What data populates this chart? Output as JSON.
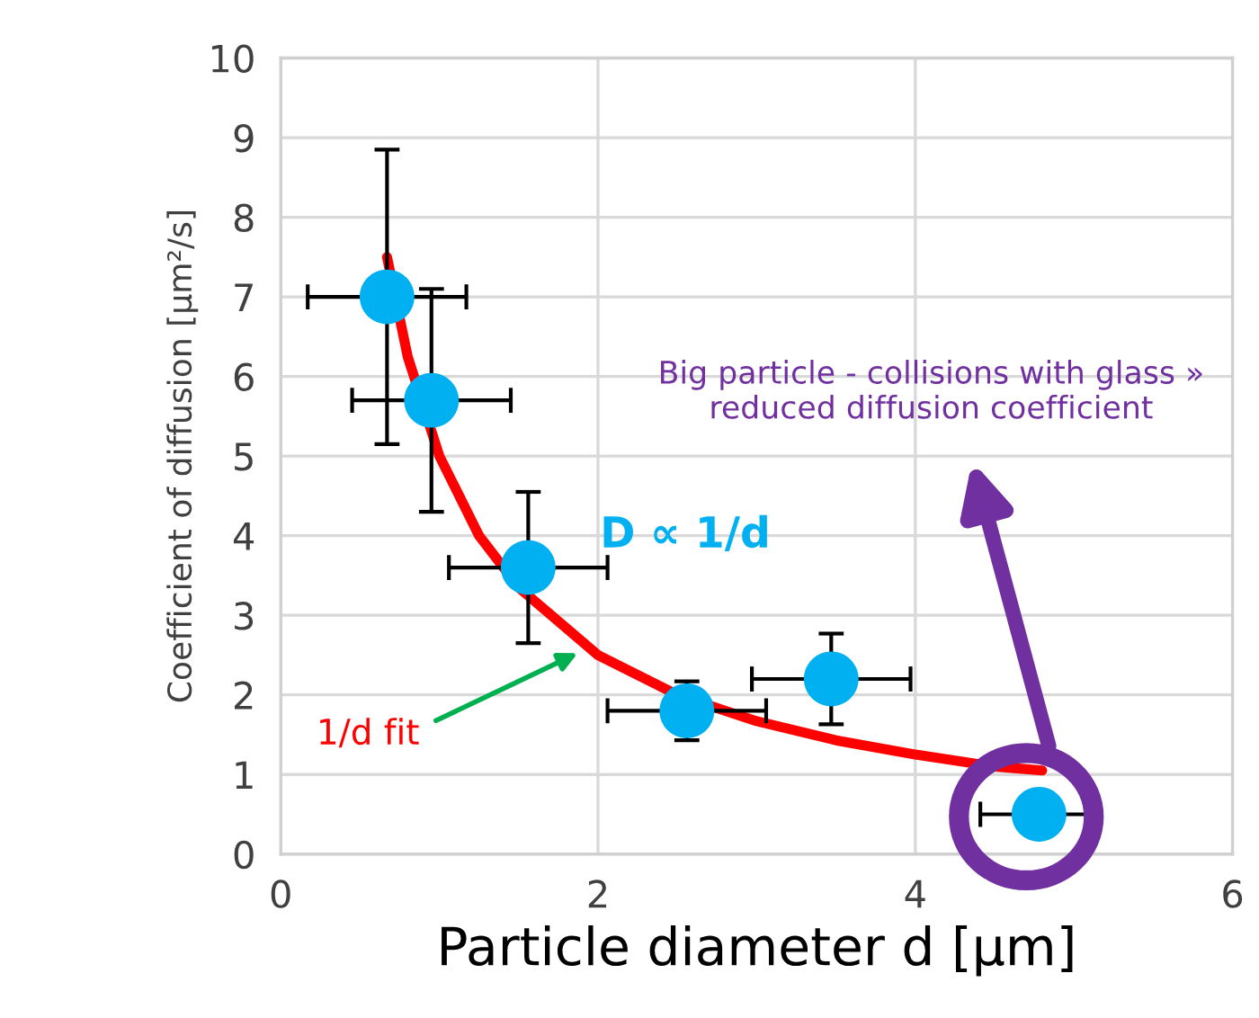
{
  "chart_data": {
    "type": "scatter",
    "xlabel": "Particle diameter d [µm]",
    "ylabel": "Coefficient of diffusion [µm²/s]",
    "xlim": [
      0,
      6
    ],
    "xticks": [
      0,
      2,
      4,
      6
    ],
    "ylim": [
      0,
      10
    ],
    "yticks": [
      0,
      1,
      2,
      3,
      4,
      5,
      6,
      7,
      8,
      9,
      10
    ],
    "grid": true,
    "marker": "circle",
    "series": [
      {
        "color": "#00b0f0",
        "x": [
          0.67,
          0.95,
          1.56,
          2.56,
          3.47,
          4.78
        ],
        "values": [
          7.0,
          5.7,
          3.6,
          1.8,
          2.2,
          0.5
        ],
        "errors": [
          1.85,
          1.4,
          0.95,
          0.37,
          0.57,
          null
        ],
        "xerrors": [
          0.5,
          0.5,
          0.5,
          0.5,
          0.5,
          0.37
        ]
      },
      {
        "type": "line",
        "color": "#ff0000",
        "marker": "none",
        "line_style": "solid",
        "x": [
          0.67,
          0.8,
          1.0,
          1.25,
          1.5,
          2.0,
          2.5,
          3.0,
          3.5,
          4.0,
          4.5,
          4.8
        ],
        "values": [
          7.5,
          6.25,
          5.0,
          4.0,
          3.35,
          2.5,
          2.0,
          1.67,
          1.43,
          1.25,
          1.1,
          1.05
        ]
      }
    ],
    "annotations": [
      "Big particle - collisions with glass » reduced diffusion coefficient",
      "D ∝ 1/d",
      "1/d fit"
    ]
  }
}
